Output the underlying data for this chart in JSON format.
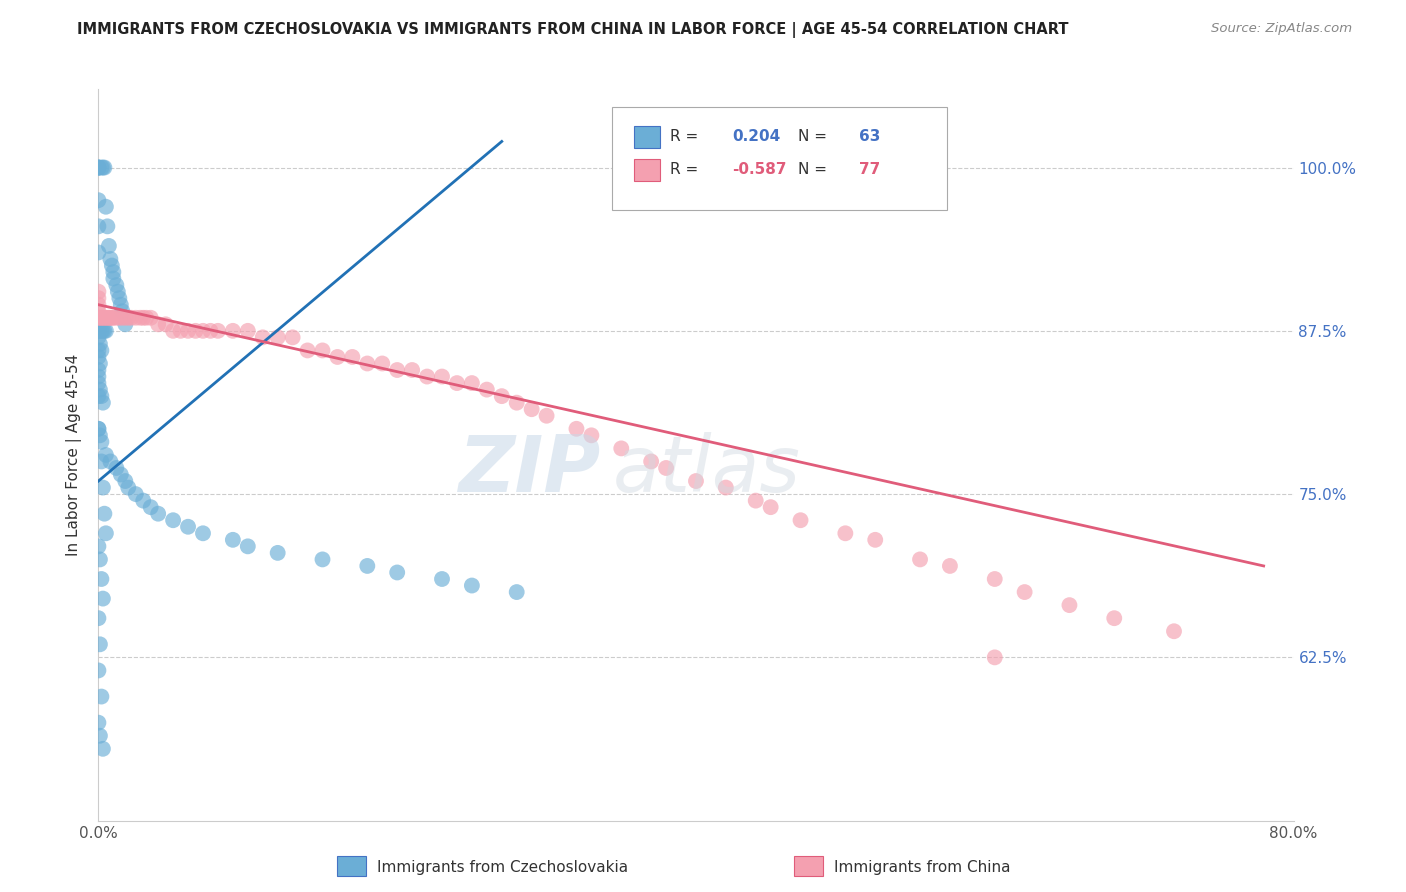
{
  "title": "IMMIGRANTS FROM CZECHOSLOVAKIA VS IMMIGRANTS FROM CHINA IN LABOR FORCE | AGE 45-54 CORRELATION CHART",
  "source": "Source: ZipAtlas.com",
  "ylabel": "In Labor Force | Age 45-54",
  "ylabel_right_ticks": [
    0.625,
    0.75,
    0.875,
    1.0
  ],
  "ylabel_right_labels": [
    "62.5%",
    "75.0%",
    "87.5%",
    "100.0%"
  ],
  "xlim": [
    0.0,
    0.8
  ],
  "ylim": [
    0.5,
    1.06
  ],
  "legend_blue_r": "0.204",
  "legend_blue_n": "63",
  "legend_pink_r": "-0.587",
  "legend_pink_n": "77",
  "blue_color": "#6baed6",
  "pink_color": "#f4a0b0",
  "blue_line_color": "#2171b5",
  "pink_line_color": "#e05c7a",
  "watermark_zip": "ZIP",
  "watermark_atlas": "atlas",
  "blue_x": [
    0.0,
    0.0,
    0.0,
    0.0,
    0.0,
    0.0,
    0.0,
    0.002,
    0.003,
    0.004,
    0.005,
    0.006,
    0.007,
    0.008,
    0.009,
    0.01,
    0.01,
    0.012,
    0.013,
    0.014,
    0.015,
    0.016,
    0.018,
    0.002,
    0.003,
    0.004,
    0.005,
    0.0,
    0.0,
    0.001,
    0.002,
    0.0,
    0.001,
    0.0,
    0.0,
    0.001,
    0.002,
    0.003,
    0.0,
    0.001,
    0.002,
    0.005,
    0.008,
    0.012,
    0.015,
    0.018,
    0.02,
    0.025,
    0.03,
    0.035,
    0.04,
    0.05,
    0.06,
    0.07,
    0.09,
    0.1,
    0.12,
    0.15,
    0.18,
    0.2,
    0.23,
    0.25,
    0.28
  ],
  "blue_y": [
    1.0,
    1.0,
    1.0,
    1.0,
    0.975,
    0.955,
    0.935,
    1.0,
    1.0,
    1.0,
    0.97,
    0.955,
    0.94,
    0.93,
    0.925,
    0.92,
    0.915,
    0.91,
    0.905,
    0.9,
    0.895,
    0.89,
    0.88,
    0.875,
    0.875,
    0.875,
    0.875,
    0.875,
    0.87,
    0.865,
    0.86,
    0.855,
    0.85,
    0.84,
    0.835,
    0.83,
    0.825,
    0.82,
    0.8,
    0.795,
    0.79,
    0.78,
    0.775,
    0.77,
    0.765,
    0.76,
    0.755,
    0.75,
    0.745,
    0.74,
    0.735,
    0.73,
    0.725,
    0.72,
    0.715,
    0.71,
    0.705,
    0.7,
    0.695,
    0.69,
    0.685,
    0.68,
    0.675
  ],
  "blue_low_x": [
    0.0,
    0.0,
    0.0,
    0.0,
    0.0,
    0.002,
    0.003,
    0.004,
    0.005,
    0.0,
    0.001,
    0.002,
    0.003,
    0.0,
    0.001,
    0.0,
    0.002,
    0.0,
    0.001,
    0.003
  ],
  "blue_low_y": [
    0.875,
    0.86,
    0.845,
    0.825,
    0.8,
    0.775,
    0.755,
    0.735,
    0.72,
    0.71,
    0.7,
    0.685,
    0.67,
    0.655,
    0.635,
    0.615,
    0.595,
    0.575,
    0.565,
    0.555
  ],
  "pink_x": [
    0.0,
    0.0,
    0.0,
    0.0,
    0.0,
    0.001,
    0.002,
    0.003,
    0.004,
    0.005,
    0.006,
    0.007,
    0.008,
    0.009,
    0.01,
    0.012,
    0.014,
    0.016,
    0.018,
    0.02,
    0.022,
    0.025,
    0.028,
    0.03,
    0.032,
    0.035,
    0.04,
    0.045,
    0.05,
    0.055,
    0.06,
    0.065,
    0.07,
    0.075,
    0.08,
    0.09,
    0.1,
    0.11,
    0.12,
    0.13,
    0.14,
    0.15,
    0.16,
    0.17,
    0.18,
    0.19,
    0.2,
    0.21,
    0.22,
    0.23,
    0.24,
    0.25,
    0.26,
    0.27,
    0.28,
    0.29,
    0.3,
    0.32,
    0.33,
    0.35,
    0.37,
    0.38,
    0.4,
    0.42,
    0.44,
    0.45,
    0.47,
    0.5,
    0.52,
    0.55,
    0.57,
    0.6,
    0.62,
    0.65,
    0.68,
    0.72,
    0.6
  ],
  "pink_y": [
    0.905,
    0.9,
    0.895,
    0.89,
    0.885,
    0.885,
    0.885,
    0.885,
    0.885,
    0.885,
    0.885,
    0.885,
    0.885,
    0.885,
    0.885,
    0.885,
    0.885,
    0.885,
    0.885,
    0.885,
    0.885,
    0.885,
    0.885,
    0.885,
    0.885,
    0.885,
    0.88,
    0.88,
    0.875,
    0.875,
    0.875,
    0.875,
    0.875,
    0.875,
    0.875,
    0.875,
    0.875,
    0.87,
    0.87,
    0.87,
    0.86,
    0.86,
    0.855,
    0.855,
    0.85,
    0.85,
    0.845,
    0.845,
    0.84,
    0.84,
    0.835,
    0.835,
    0.83,
    0.825,
    0.82,
    0.815,
    0.81,
    0.8,
    0.795,
    0.785,
    0.775,
    0.77,
    0.76,
    0.755,
    0.745,
    0.74,
    0.73,
    0.72,
    0.715,
    0.7,
    0.695,
    0.685,
    0.675,
    0.665,
    0.655,
    0.645,
    0.625
  ],
  "blue_line_x0": 0.0,
  "blue_line_x1": 0.27,
  "blue_line_y0": 0.76,
  "blue_line_y1": 1.02,
  "pink_line_x0": 0.0,
  "pink_line_x1": 0.78,
  "pink_line_y0": 0.895,
  "pink_line_y1": 0.695
}
